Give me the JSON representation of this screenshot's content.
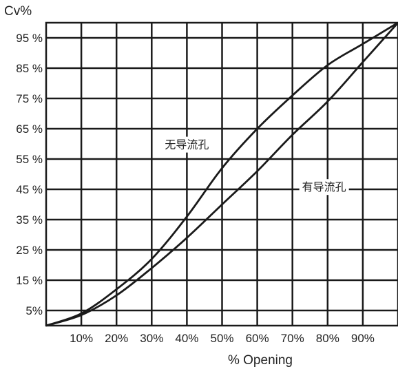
{
  "chart_data": {
    "type": "line",
    "ylabel": "Cv%",
    "xlabel": "% Opening",
    "xlim": [
      0,
      100
    ],
    "ylim": [
      0,
      100
    ],
    "grid": true,
    "x_tick_labels": [
      "10%",
      "20%",
      "30%",
      "40%",
      "50%",
      "60%",
      "70%",
      "80%",
      "90%"
    ],
    "y_tick_labels": [
      "5%",
      "15 %",
      "25 %",
      "35 %",
      "45 %",
      "55 %",
      "65 %",
      "75 %",
      "85 %",
      "95 %"
    ],
    "series": [
      {
        "name": "无导流孔",
        "x": [
          0,
          10,
          20,
          30,
          40,
          50,
          60,
          70,
          80,
          90,
          100
        ],
        "y": [
          0,
          4,
          12,
          22,
          36,
          52,
          65,
          76,
          86,
          93,
          100
        ]
      },
      {
        "name": "有导流孔",
        "x": [
          0,
          10,
          20,
          30,
          40,
          50,
          60,
          70,
          80,
          90,
          100
        ],
        "y": [
          0,
          3.5,
          10,
          19,
          29,
          40,
          51,
          63,
          74,
          87,
          100
        ]
      }
    ],
    "line_color": "#1a1a1a",
    "grid_color": "#1a1a1a"
  }
}
